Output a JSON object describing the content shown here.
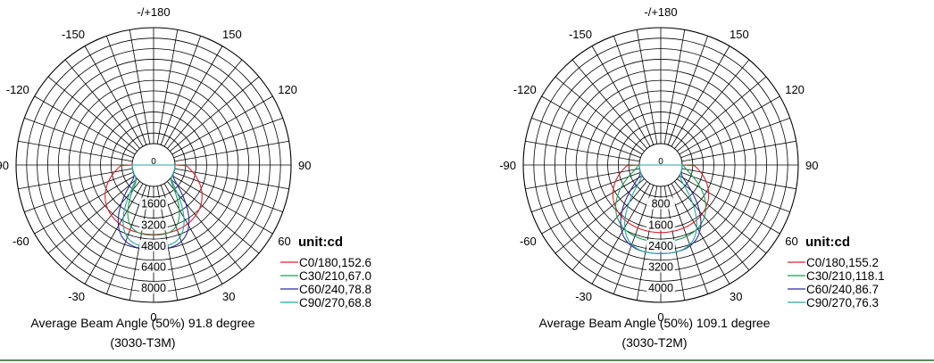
{
  "chart_data": [
    {
      "type": "polar",
      "unit_label": "unit:cd",
      "angle_labels": [
        "-/+180",
        "150",
        "120",
        "90",
        "60",
        "30",
        "0",
        "-30",
        "-60",
        "-90",
        "-120",
        "-150"
      ],
      "radial_ticks": [
        "0",
        "1600",
        "3200",
        "4800",
        "6400",
        "8000"
      ],
      "r_max": 8800,
      "grid": true,
      "caption_lines": [
        "Average Beam Angle (50%) 91.8 degree",
        "(3030-T3M)"
      ],
      "legend_position": "bottom-right",
      "series": [
        {
          "name": "C0/180,152.6",
          "color": "#e0202a",
          "peak_angle": 0,
          "peak_cd": 3650,
          "beam_half_width_deg": 76
        },
        {
          "name": "C30/210,67.0",
          "color": "#1aa050",
          "peak_angle": 0,
          "peak_cd": 3700,
          "beam_half_width_deg": 33
        },
        {
          "name": "C60/240,78.8",
          "color": "#2a2a9a",
          "peak_angle": 0,
          "peak_cd": 4800,
          "beam_half_width_deg": 39
        },
        {
          "name": "C90/270,68.8",
          "color": "#22a8a0",
          "peak_angle": 0,
          "peak_cd": 4600,
          "beam_half_width_deg": 34
        }
      ]
    },
    {
      "type": "polar",
      "unit_label": "unit:cd",
      "angle_labels": [
        "-/+180",
        "150",
        "120",
        "90",
        "60",
        "30",
        "0",
        "-30",
        "-60",
        "-90",
        "-120",
        "-150"
      ],
      "radial_ticks": [
        "0",
        "800",
        "1600",
        "2400",
        "3200",
        "4000"
      ],
      "r_max": 4400,
      "grid": true,
      "caption_lines": [
        "Average Beam Angle (50%) 109.1 degree",
        "(3030-T2M)"
      ],
      "legend_position": "bottom-right",
      "series": [
        {
          "name": "C0/180,155.2",
          "color": "#e0202a",
          "peak_angle": 0,
          "peak_cd": 1750,
          "beam_half_width_deg": 78
        },
        {
          "name": "C30/210,118.1",
          "color": "#1aa050",
          "peak_angle": 0,
          "peak_cd": 2100,
          "beam_half_width_deg": 59
        },
        {
          "name": "C60/240,86.7",
          "color": "#2a2a9a",
          "peak_angle": 0,
          "peak_cd": 2550,
          "beam_half_width_deg": 43
        },
        {
          "name": "C90/270,76.3",
          "color": "#22a8a0",
          "peak_angle": 0,
          "peak_cd": 2550,
          "beam_half_width_deg": 38
        }
      ]
    }
  ]
}
